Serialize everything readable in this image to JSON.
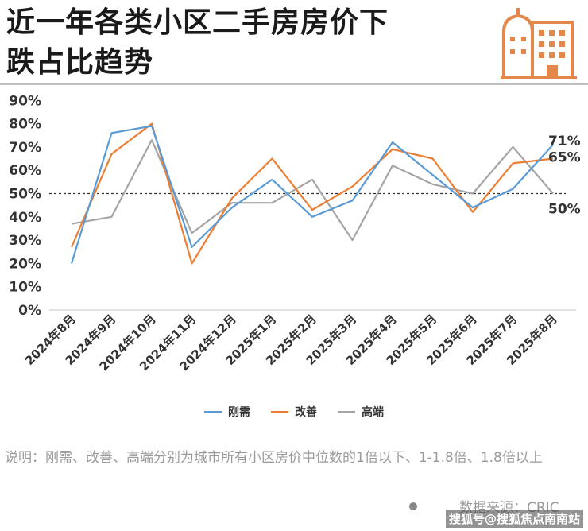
{
  "title_line1": "近一年各类小区二手房房价下",
  "title_line2": "跌占比趋势",
  "note": "说明：刚需、改善、高端分别为城市所有小区房价中位数的1倍以下、1-1.8倍、1.8倍以上",
  "source": "数据来源：CRIC",
  "watermark": "搜狐号@搜狐焦点南南站",
  "colors": {
    "刚需": "#5b9bd5",
    "改善": "#ed7d31",
    "高端": "#a5a5a5",
    "logo": "#e3874a"
  },
  "chart_data": {
    "type": "line",
    "categories": [
      "2024年8月",
      "2024年9月",
      "2024年10月",
      "2024年11月",
      "2024年12月",
      "2025年1月",
      "2025年2月",
      "2025年3月",
      "2025年4月",
      "2025年5月",
      "2025年6月",
      "2025年7月",
      "2025年8月"
    ],
    "series": [
      {
        "name": "刚需",
        "values": [
          20,
          76,
          79,
          27,
          44,
          56,
          40,
          47,
          72,
          58,
          44,
          52,
          71
        ]
      },
      {
        "name": "改善",
        "values": [
          27,
          67,
          80,
          20,
          48,
          65,
          43,
          53,
          69,
          65,
          42,
          63,
          65
        ]
      },
      {
        "name": "高端",
        "values": [
          37,
          40,
          73,
          33,
          46,
          46,
          56,
          30,
          62,
          54,
          50,
          70,
          50
        ]
      }
    ],
    "ylim": [
      0,
      90
    ],
    "yticks": [
      "0%",
      "10%",
      "20%",
      "30%",
      "40%",
      "50%",
      "60%",
      "70%",
      "80%",
      "90%"
    ],
    "reference_line": {
      "value": 50,
      "label": "50%"
    },
    "end_labels": [
      "71%",
      "65%"
    ],
    "grid": false,
    "legend": "bottom"
  }
}
